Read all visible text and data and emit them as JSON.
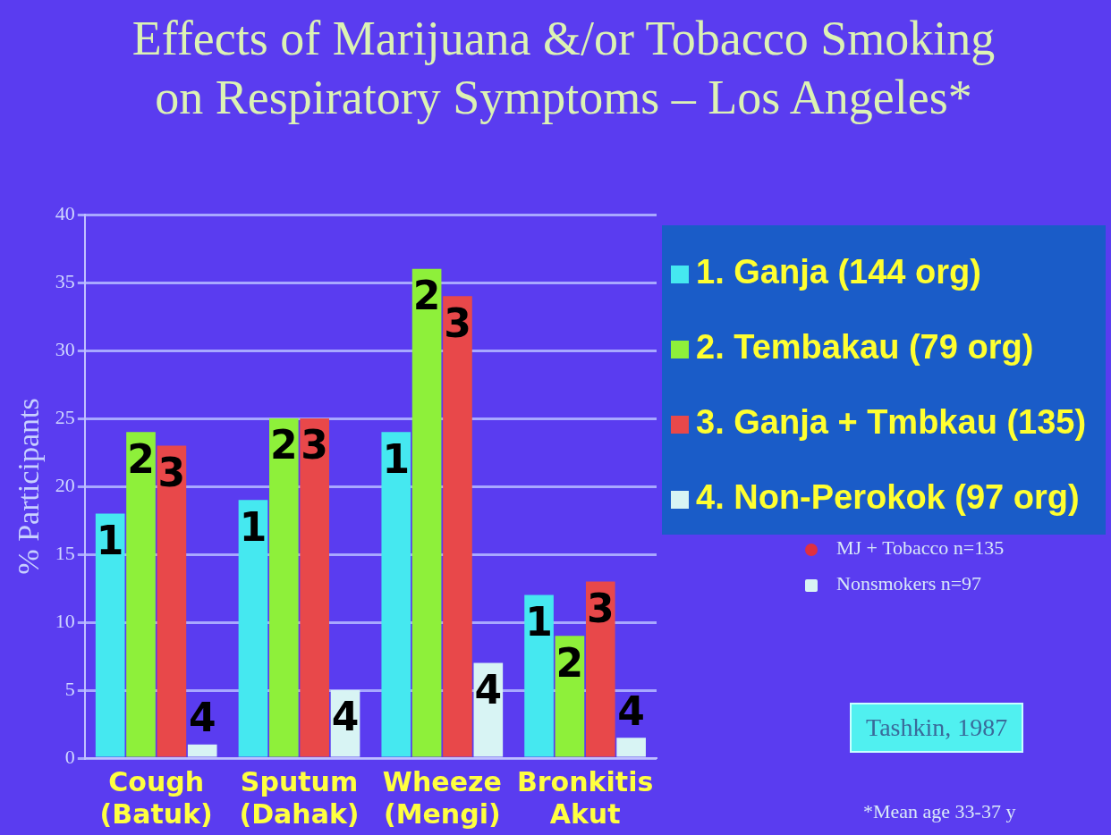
{
  "chart_data": {
    "type": "bar",
    "title": "Effects of Marijuana &/or Tobacco Smoking\non Respiratory Symptoms – Los Angeles*",
    "ylabel": "% Participants",
    "categories": [
      "Cough\n(Batuk)",
      "Sputum\n(Dahak)",
      "Wheeze\n(Mengi)",
      "Bronkitis\nAkut"
    ],
    "series": [
      {
        "name": "1. Ganja (144 org)",
        "color": "#45e8f0",
        "values": [
          18,
          19,
          24,
          12
        ]
      },
      {
        "name": "2. Tembakau (79 org)",
        "color": "#8ef03a",
        "values": [
          24,
          25,
          36,
          9
        ]
      },
      {
        "name": "3. Ganja + Tmbkau (135)",
        "color": "#e8484a",
        "values": [
          23,
          25,
          34,
          13
        ]
      },
      {
        "name": "4. Non-Perokok (97 org)",
        "color": "#d8f4f4",
        "values": [
          1,
          5,
          7,
          1.5
        ]
      }
    ],
    "ylim": [
      0,
      40
    ],
    "yticks": [
      0,
      5,
      10,
      15,
      20,
      25,
      30,
      35,
      40
    ],
    "grid": "y",
    "legend": "top right",
    "annotations": [
      "MJ + Tobacco n=135",
      "Nonsmokers n=97",
      "Tashkin, 1987",
      "*Mean age 33-37 y",
      {
        "text": "1",
        "x": "Cough\n(Batuk)",
        "y": 18
      },
      {
        "text": "1",
        "x": "Sputum\n(Dahak)",
        "y": 19
      },
      {
        "text": "1",
        "x": "Wheeze\n(Mengi)",
        "y": 24
      },
      {
        "text": "1",
        "x": "Bronkitis\nAkut",
        "y": 12
      },
      {
        "text": "2",
        "x": "Cough\n(Batuk)",
        "y": 24
      },
      {
        "text": "2",
        "x": "Sputum\n(Dahak)",
        "y": 25
      },
      {
        "text": "2",
        "x": "Wheeze\n(Mengi)",
        "y": 36
      },
      {
        "text": "2",
        "x": "Bronkitis\nAkut",
        "y": 9
      },
      {
        "text": "3",
        "x": "Cough\n(Batuk)",
        "y": 23
      },
      {
        "text": "3",
        "x": "Sputum\n(Dahak)",
        "y": 25
      },
      {
        "text": "3",
        "x": "Wheeze\n(Mengi)",
        "y": 34
      },
      {
        "text": "3",
        "x": "Bronkitis\nAkut",
        "y": 13
      },
      {
        "text": "4",
        "x": "Cough\n(Batuk)",
        "y": 1
      },
      {
        "text": "4",
        "x": "Sputum\n(Dahak)",
        "y": 5
      },
      {
        "text": "4",
        "x": "Wheeze\n(Mengi)",
        "y": 7
      },
      {
        "text": "4",
        "x": "Bronkitis\nAkut",
        "y": 1.5
      }
    ]
  }
}
